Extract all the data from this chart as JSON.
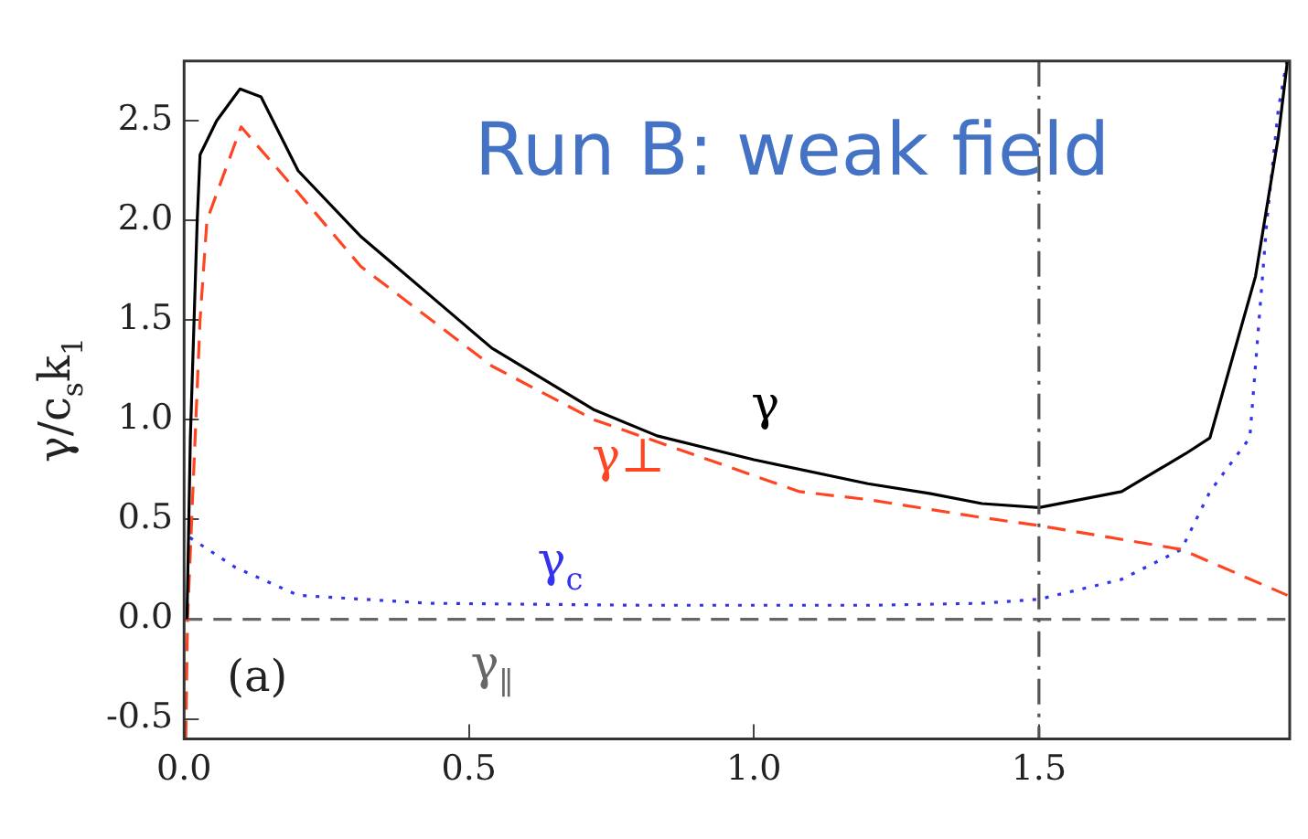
{
  "chart_data": {
    "type": "line",
    "ylabel": "γ/c$_{s}$k$_{1}$",
    "xlim": [
      0,
      1.94
    ],
    "ylim": [
      -0.6,
      2.8
    ],
    "xticks": [
      {
        "value": 0,
        "label": "0.0"
      },
      {
        "value": 0.5,
        "label": "0.5"
      },
      {
        "value": 1,
        "label": "1.0"
      },
      {
        "value": 1.5,
        "label": "1.5"
      }
    ],
    "yticks": [
      {
        "value": -0.5,
        "label": "-0.5"
      },
      {
        "value": 0,
        "label": "0.0"
      },
      {
        "value": 0.5,
        "label": "0.5"
      },
      {
        "value": 1,
        "label": "1.0"
      },
      {
        "value": 1.5,
        "label": "1.5"
      },
      {
        "value": 2,
        "label": "2.0"
      },
      {
        "value": 2.5,
        "label": "2.5"
      }
    ],
    "grid": false,
    "legend": false,
    "marker": "none",
    "series": [
      {
        "name": "γ",
        "color": "#000000",
        "line_style": "solid",
        "x": [
          0.005,
          0.011,
          0.023,
          0.028,
          0.057,
          0.098,
          0.135,
          0.2,
          0.31,
          0.54,
          0.72,
          0.83,
          1.0,
          1.2,
          1.31,
          1.4,
          1.5,
          1.645,
          1.757,
          1.8,
          1.88,
          1.92,
          1.936
        ],
        "values": [
          0,
          0.91,
          2.0,
          2.33,
          2.5,
          2.66,
          2.62,
          2.25,
          1.92,
          1.36,
          1.05,
          0.92,
          0.8,
          0.68,
          0.63,
          0.58,
          0.56,
          0.64,
          0.83,
          0.91,
          1.72,
          2.42,
          2.8
        ]
      },
      {
        "name": "γ⊥",
        "color": "#ff4422",
        "line_style": "dashed",
        "x": [
          0.003,
          0.006,
          0.028,
          0.04,
          0.1,
          0.2,
          0.31,
          0.54,
          0.72,
          1.0,
          1.08,
          1.2,
          1.4,
          1.5,
          1.75,
          1.936
        ],
        "values": [
          -0.6,
          0,
          1.5,
          2.0,
          2.47,
          2.14,
          1.77,
          1.27,
          1.0,
          0.72,
          0.64,
          0.6,
          0.51,
          0.47,
          0.35,
          0.12
        ]
      },
      {
        "name": "γ$_{c}$",
        "color": "#3333ee",
        "line_style": "dotted",
        "x": [
          0.01,
          0.09,
          0.2,
          0.43,
          0.8,
          1.2,
          1.4,
          1.5,
          1.645,
          1.75,
          1.8,
          1.87,
          1.9,
          1.92,
          1.935
        ],
        "values": [
          0.41,
          0.26,
          0.12,
          0.08,
          0.07,
          0.07,
          0.08,
          0.1,
          0.2,
          0.35,
          0.64,
          0.91,
          2.0,
          2.56,
          2.8
        ]
      },
      {
        "name": "γ$_{∥}$",
        "color": "#666666",
        "line_style": "dashed",
        "x": [
          0,
          1.94
        ],
        "values": [
          0,
          0
        ]
      }
    ],
    "ref_lines": [
      {
        "axis": "x",
        "value": 1.5,
        "color": "#555555",
        "line_style": "dashed"
      }
    ],
    "annotations": [
      "Run B: weak field",
      "(a)"
    ]
  }
}
